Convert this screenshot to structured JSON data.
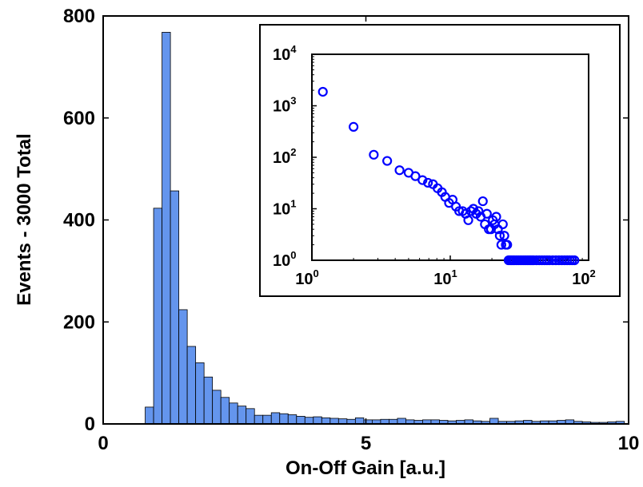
{
  "chart_data": [
    {
      "id": "main",
      "type": "bar",
      "title": "",
      "xlabel": "On-Off Gain [a.u.]",
      "ylabel": "Events - 3000 Total",
      "xlim": [
        0,
        10
      ],
      "ylim": [
        0,
        800
      ],
      "xticks": [
        "0",
        "5",
        "10"
      ],
      "xtick_values": [
        0,
        5,
        10
      ],
      "yticks": [
        "0",
        "200",
        "400",
        "600",
        "800"
      ],
      "ytick_values": [
        0,
        200,
        400,
        600,
        800
      ],
      "bar_color": "#6495ED",
      "bin_width": 0.16,
      "bins_start": [
        0.8,
        0.96,
        1.12,
        1.28,
        1.44,
        1.6,
        1.76,
        1.92,
        2.08,
        2.24,
        2.4,
        2.56,
        2.72,
        2.88,
        3.04,
        3.2,
        3.36,
        3.52,
        3.68,
        3.84,
        4.0,
        4.16,
        4.32,
        4.48,
        4.64,
        4.8,
        4.96,
        5.12,
        5.28,
        5.44,
        5.6,
        5.76,
        5.92,
        6.08,
        6.24,
        6.4,
        6.56,
        6.72,
        6.88,
        7.04,
        7.2,
        7.36,
        7.52,
        7.68,
        7.84,
        8.0,
        8.16,
        8.32,
        8.48,
        8.64,
        8.8,
        8.96,
        9.12,
        9.28,
        9.44,
        9.6,
        9.76
      ],
      "values": [
        33,
        423,
        768,
        457,
        224,
        152,
        120,
        92,
        66,
        52,
        41,
        35,
        30,
        17,
        17,
        22,
        20,
        18,
        15,
        13,
        14,
        12,
        11,
        10,
        9,
        12,
        8,
        8,
        9,
        9,
        11,
        8,
        7,
        8,
        8,
        7,
        6,
        7,
        8,
        6,
        5,
        11,
        5,
        5,
        6,
        7,
        5,
        6,
        6,
        7,
        8,
        5,
        4,
        3,
        3,
        4,
        5
      ],
      "grid": false
    },
    {
      "id": "inset",
      "type": "scatter",
      "title": "",
      "xscale": "log",
      "yscale": "log",
      "xlim": [
        1,
        100
      ],
      "ylim": [
        1,
        10000
      ],
      "xticks": [
        {
          "base": "10",
          "exp": "0"
        },
        {
          "base": "10",
          "exp": "1"
        },
        {
          "base": "10",
          "exp": "2"
        }
      ],
      "xtick_values": [
        1,
        10,
        100
      ],
      "yticks": [
        {
          "base": "10",
          "exp": "0"
        },
        {
          "base": "10",
          "exp": "1"
        },
        {
          "base": "10",
          "exp": "2"
        },
        {
          "base": "10",
          "exp": "3"
        },
        {
          "base": "10",
          "exp": "4"
        }
      ],
      "ytick_values": [
        1,
        10,
        100,
        1000,
        10000
      ],
      "marker": "circle-open",
      "marker_color": "#0000FF",
      "x": [
        1.2,
        2.0,
        2.8,
        3.5,
        4.3,
        5.0,
        5.6,
        6.3,
        6.9,
        7.5,
        8.1,
        8.7,
        9.2,
        9.8,
        10.4,
        11.0,
        11.6,
        12.3,
        12.9,
        13.5,
        14.1,
        14.7,
        15.4,
        16.0,
        16.6,
        17.2,
        17.8,
        18.4,
        19.0,
        19.7,
        20.3,
        20.9,
        21.5,
        22.1,
        22.8,
        23.4,
        24.0,
        24.6,
        25.2,
        25.8,
        26.4,
        27.0,
        27.6,
        28.3,
        29.0,
        30.0,
        31.0,
        32.0,
        33.0,
        34.0,
        35.0,
        36.0,
        37.0,
        38.0,
        39.0,
        40.0,
        42.0,
        44.0,
        46.0,
        48.0,
        50.0,
        52.0,
        55.0,
        58.0,
        61.0,
        64.0,
        67.0,
        70.0,
        73.0,
        76.0,
        79.0
      ],
      "y": [
        1870,
        390,
        112,
        85,
        56,
        50,
        43,
        36,
        32,
        30,
        25,
        21,
        17,
        13,
        15,
        11,
        9,
        9,
        8,
        6,
        9,
        10,
        8,
        9,
        7,
        14,
        5,
        8,
        4,
        4,
        6,
        5,
        7,
        4,
        3,
        2,
        5,
        3,
        2,
        2,
        1,
        1,
        1,
        1,
        1,
        1,
        1,
        1,
        1,
        1,
        1,
        1,
        1,
        1,
        1,
        1,
        1,
        1,
        1,
        1,
        1,
        1,
        1,
        1,
        1,
        1,
        1,
        1,
        1,
        1,
        1
      ],
      "grid": false
    }
  ]
}
